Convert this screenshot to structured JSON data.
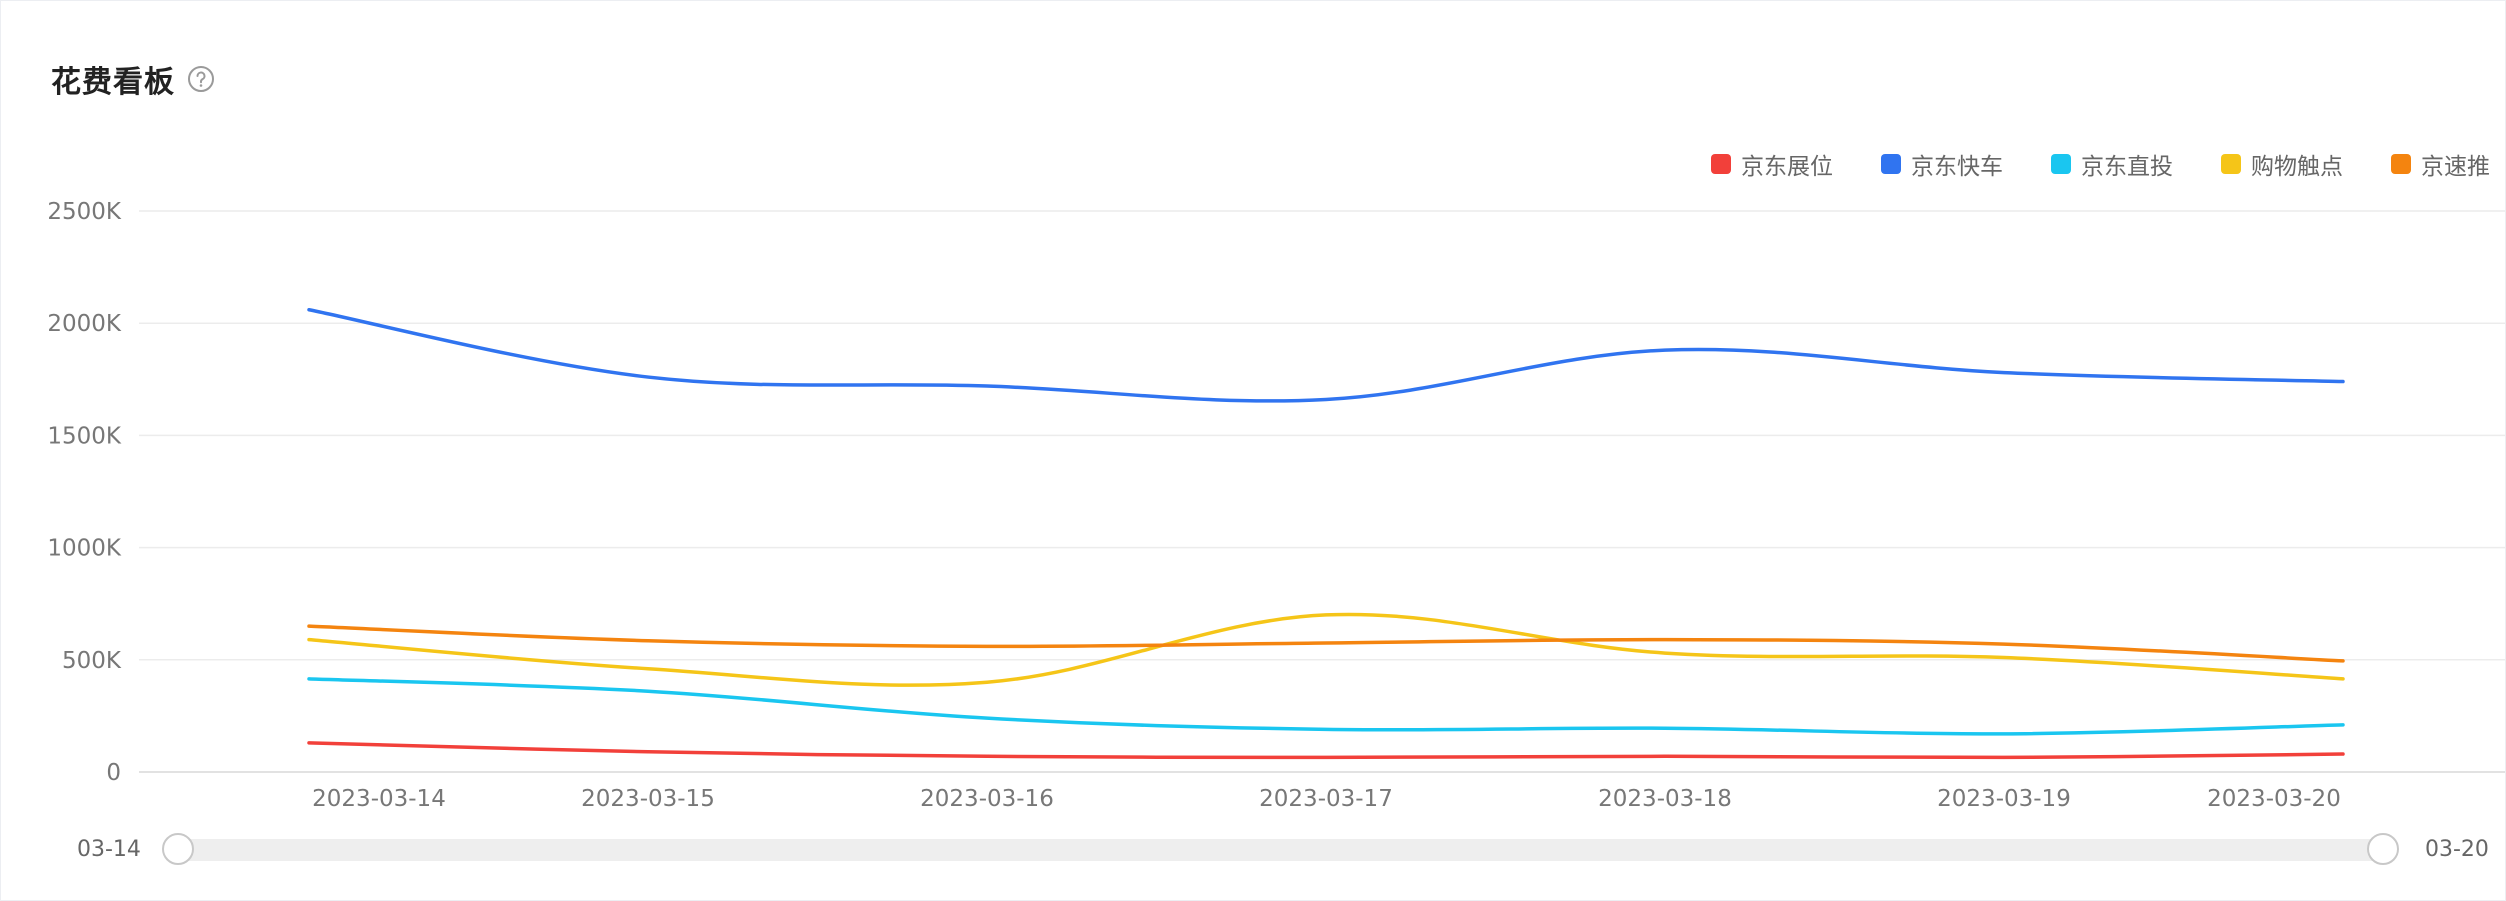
{
  "panel": {
    "title": "花费看板",
    "help_icon": "question-circle-icon"
  },
  "range_slider": {
    "start_label": "03-14",
    "end_label": "03-20"
  },
  "chart_data": {
    "type": "line",
    "smooth": true,
    "x": [
      "2023-03-14",
      "2023-03-15",
      "2023-03-16",
      "2023-03-17",
      "2023-03-18",
      "2023-03-19",
      "2023-03-20"
    ],
    "ylim": [
      0,
      2500
    ],
    "yticks": [
      "0",
      "500K",
      "1000K",
      "1500K",
      "2000K",
      "2500K"
    ],
    "grid": true,
    "legend_position": "top-right",
    "series": [
      {
        "name": "京东展位",
        "color": "#f2403a",
        "values": [
          130,
          90,
          70,
          65,
          70,
          65,
          80
        ]
      },
      {
        "name": "京东快车",
        "color": "#3074f0",
        "values": [
          2060,
          1760,
          1720,
          1660,
          1880,
          1780,
          1740
        ]
      },
      {
        "name": "京东直投",
        "color": "#1ac6f0",
        "values": [
          415,
          360,
          240,
          190,
          195,
          170,
          210
        ]
      },
      {
        "name": "购物触点",
        "color": "#f5c518",
        "values": [
          590,
          460,
          400,
          700,
          530,
          510,
          415
        ]
      },
      {
        "name": "京速推",
        "color": "#f4840f",
        "values": [
          650,
          585,
          560,
          575,
          590,
          570,
          495
        ]
      }
    ]
  }
}
